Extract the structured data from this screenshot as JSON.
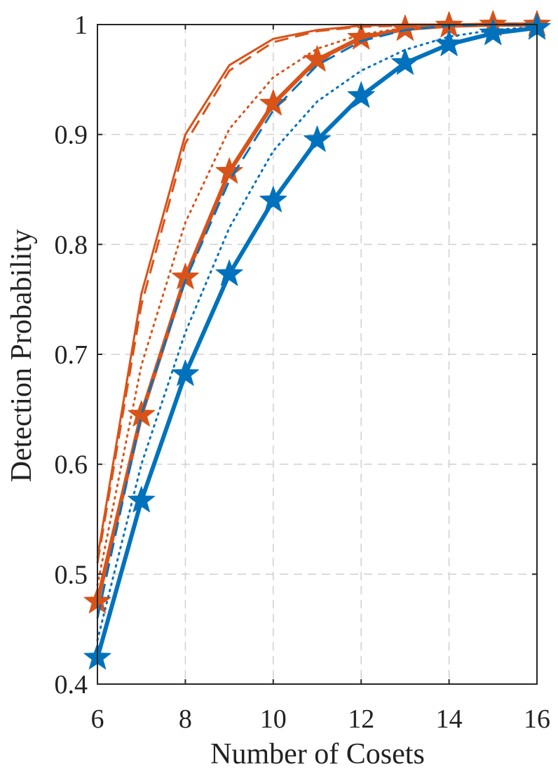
{
  "chart_data": {
    "type": "line",
    "xlabel": "Number of Cosets",
    "ylabel": "Detection Probability",
    "xlim": [
      6,
      16
    ],
    "ylim": [
      0.4,
      1
    ],
    "xticks": [
      6,
      8,
      10,
      12,
      14,
      16
    ],
    "yticks": [
      0.4,
      0.5,
      0.6,
      0.7,
      0.8,
      0.9,
      1
    ],
    "ytick_labels": [
      "0.4",
      "0.5",
      "0.6",
      "0.7",
      "0.8",
      "0.9",
      "1"
    ],
    "grid": true,
    "x": [
      6,
      7,
      8,
      9,
      10,
      11,
      12,
      13,
      14,
      15,
      16
    ],
    "colors": {
      "orange": "#D95319",
      "blue": "#0072BD",
      "grid": "#d0d0d0",
      "axis": "#262626"
    },
    "series": [
      {
        "color": "orange",
        "style": "solid",
        "weight": "thin",
        "marker": "none",
        "values": [
          0.515,
          0.755,
          0.9,
          0.963,
          0.987,
          0.995,
          0.999,
          1.0,
          1.0,
          1.0,
          1.0
        ]
      },
      {
        "color": "orange",
        "style": "dashed",
        "weight": "thin",
        "marker": "none",
        "values": [
          0.51,
          0.745,
          0.892,
          0.958,
          0.984,
          0.994,
          0.998,
          0.999,
          1.0,
          1.0,
          1.0
        ]
      },
      {
        "color": "orange",
        "style": "dotted",
        "weight": "thin",
        "marker": "none",
        "values": [
          0.49,
          0.69,
          0.82,
          0.905,
          0.952,
          0.978,
          0.991,
          0.997,
          0.999,
          1.0,
          1.0
        ]
      },
      {
        "color": "orange",
        "style": "solid",
        "weight": "thick",
        "marker": "star",
        "values": [
          0.475,
          0.645,
          0.77,
          0.866,
          0.928,
          0.968,
          0.988,
          0.996,
          0.999,
          1.0,
          1.0
        ]
      },
      {
        "color": "blue",
        "style": "dashed",
        "weight": "thin",
        "marker": "none",
        "values": [
          0.46,
          0.645,
          0.767,
          0.858,
          0.922,
          0.963,
          0.985,
          0.995,
          0.999,
          1.0,
          1.0
        ]
      },
      {
        "color": "blue",
        "style": "dotted",
        "weight": "thin",
        "marker": "none",
        "values": [
          0.44,
          0.6,
          0.72,
          0.815,
          0.885,
          0.93,
          0.958,
          0.977,
          0.989,
          0.995,
          0.998
        ]
      },
      {
        "color": "blue",
        "style": "solid",
        "weight": "thick",
        "marker": "star",
        "values": [
          0.424,
          0.567,
          0.682,
          0.773,
          0.84,
          0.895,
          0.935,
          0.965,
          0.982,
          0.992,
          0.997
        ]
      }
    ]
  }
}
